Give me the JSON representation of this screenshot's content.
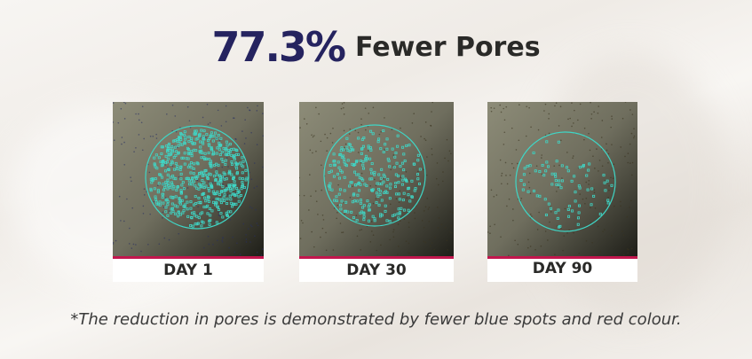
{
  "headline": {
    "percent": "77.3%",
    "label": "Fewer Pores",
    "percent_color": "#25235f"
  },
  "panels": [
    {
      "label": "DAY 1",
      "spot_density": "high"
    },
    {
      "label": "DAY 30",
      "spot_density": "medium"
    },
    {
      "label": "DAY 90",
      "spot_density": "low"
    }
  ],
  "colors": {
    "spot": "#3fd6c6",
    "circle": "#3fd6c6",
    "divider": "#c2164d"
  },
  "footnote": "*The reduction in pores is demonstrated by fewer blue spots and red colour."
}
